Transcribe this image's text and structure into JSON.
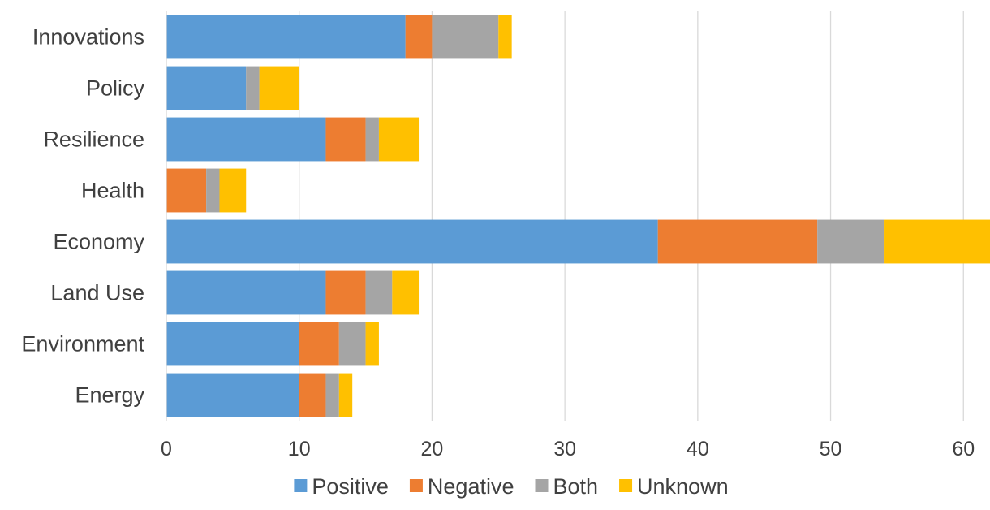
{
  "chart_data": {
    "type": "bar",
    "orientation": "horizontal",
    "stacked": true,
    "categories": [
      "Innovations",
      "Policy",
      "Resilience",
      "Health",
      "Economy",
      "Land Use",
      "Environment",
      "Energy"
    ],
    "series": [
      {
        "name": "Positive",
        "color": "#5B9BD5",
        "values": [
          18,
          6,
          12,
          0,
          37,
          12,
          10,
          10
        ]
      },
      {
        "name": "Negative",
        "color": "#ED7D31",
        "values": [
          2,
          0,
          3,
          3,
          12,
          3,
          3,
          2
        ]
      },
      {
        "name": "Both",
        "color": "#A5A5A5",
        "values": [
          5,
          1,
          1,
          1,
          5,
          2,
          2,
          1
        ]
      },
      {
        "name": "Unknown",
        "color": "#FFC000",
        "values": [
          1,
          3,
          3,
          2,
          8,
          2,
          1,
          1
        ]
      }
    ],
    "x_ticks": [
      0,
      10,
      20,
      30,
      40,
      50,
      60
    ],
    "xlim": [
      0,
      62
    ],
    "grid": "vertical",
    "legend": "bottom",
    "title": "",
    "xlabel": "",
    "ylabel": ""
  }
}
